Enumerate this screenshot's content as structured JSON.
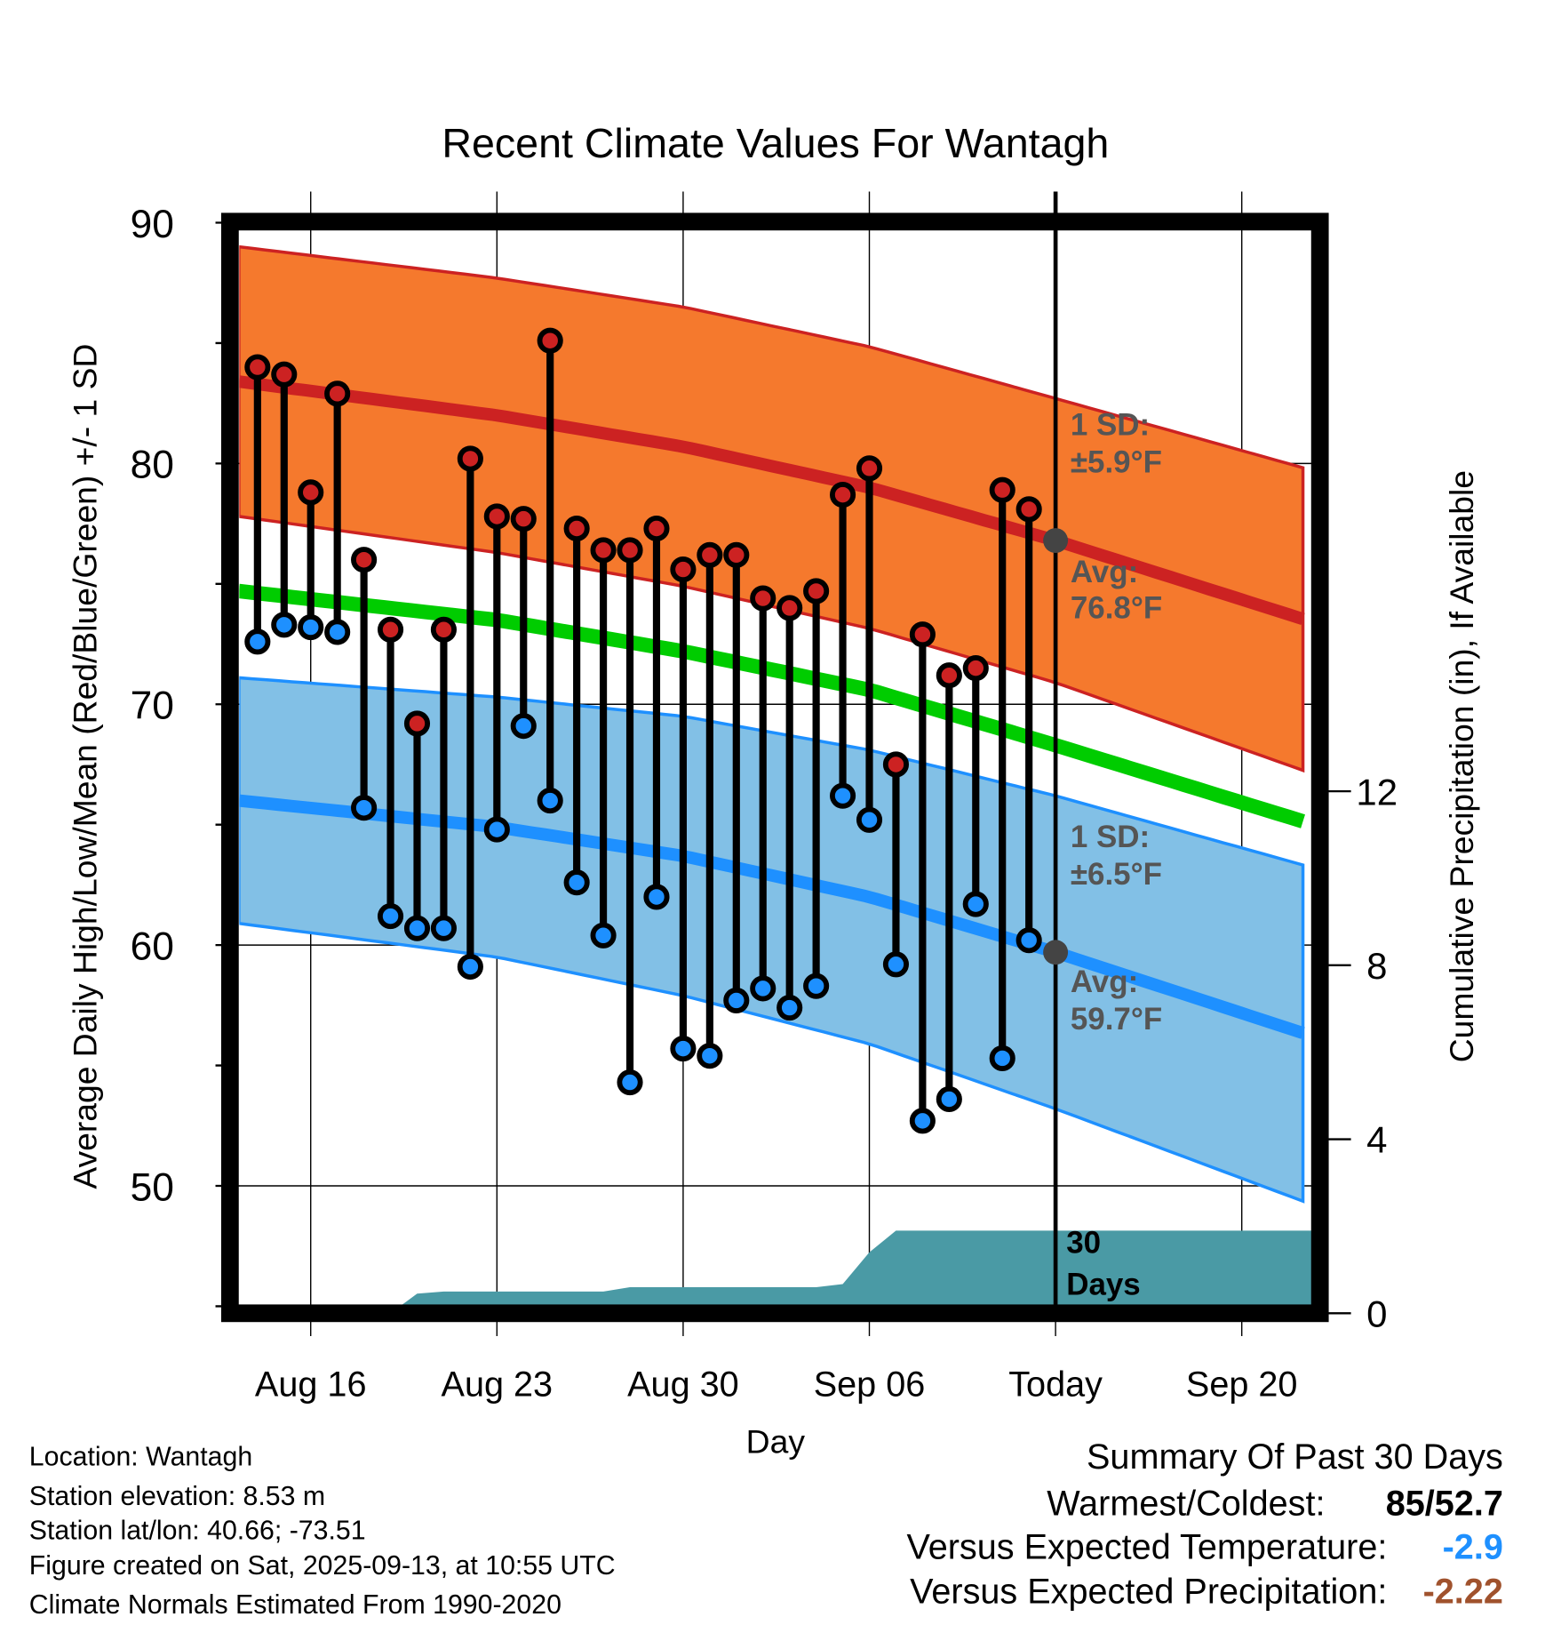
{
  "chart_data": {
    "type": "line",
    "title": "Recent Climate Values For Wantagh",
    "xlabel": "Day",
    "ylabel": "Average Daily High/Low/Mean (Red/Blue/Green) +/- 1 SD",
    "y2label": "Cumulative Precipitation (in), If Available",
    "ylim": [
      45.5,
      90
    ],
    "y2lim": [
      0,
      14
    ],
    "yticks": [
      "90",
      "80",
      "70",
      "60",
      "50"
    ],
    "y2ticks": [
      "12",
      "8",
      "4",
      "0"
    ],
    "xticks": [
      "Aug 16",
      "Aug 23",
      "Aug 30",
      "Sep 06",
      "Today",
      "Sep 20"
    ],
    "dates": [
      "Aug 14",
      "Aug 15",
      "Aug 16",
      "Aug 17",
      "Aug 18",
      "Aug 19",
      "Aug 20",
      "Aug 21",
      "Aug 22",
      "Aug 23",
      "Aug 24",
      "Aug 25",
      "Aug 26",
      "Aug 27",
      "Aug 28",
      "Aug 29",
      "Aug 30",
      "Aug 31",
      "Sep 01",
      "Sep 02",
      "Sep 03",
      "Sep 04",
      "Sep 05",
      "Sep 06",
      "Sep 07",
      "Sep 08",
      "Sep 09",
      "Sep 10",
      "Sep 11",
      "Sep 12"
    ],
    "series": [
      {
        "name": "Daily High",
        "color": "#cc2222",
        "values": [
          84.0,
          83.7,
          78.8,
          82.9,
          76.0,
          73.1,
          69.2,
          73.1,
          80.2,
          77.8,
          77.7,
          85.1,
          77.3,
          76.4,
          76.4,
          77.3,
          75.6,
          76.2,
          76.2,
          74.4,
          74.0,
          74.7,
          78.7,
          79.8,
          67.5,
          72.9,
          71.2,
          71.5,
          78.9,
          78.1
        ]
      },
      {
        "name": "Daily Low",
        "color": "#1e90ff",
        "values": [
          72.6,
          73.3,
          73.2,
          73.0,
          65.7,
          61.2,
          60.7,
          60.7,
          59.1,
          64.8,
          69.1,
          66.0,
          62.6,
          60.4,
          54.3,
          62.0,
          55.7,
          55.4,
          57.7,
          58.2,
          57.4,
          58.3,
          66.2,
          65.2,
          59.2,
          52.7,
          53.6,
          61.7,
          55.3,
          60.2
        ]
      },
      {
        "name": "Cumulative Precipitation",
        "color": "#4a9aa5",
        "values": [
          0,
          0,
          0,
          0,
          0,
          0,
          0.45,
          0.5,
          0.5,
          0.5,
          0.5,
          0.5,
          0.5,
          0.5,
          0.6,
          0.6,
          0.6,
          0.6,
          0.6,
          0.6,
          0.6,
          0.6,
          0.67,
          1.4,
          1.9,
          1.9,
          1.9,
          1.9,
          1.9,
          1.9
        ]
      }
    ],
    "normals": {
      "days_from_aug14": [
        -0.7,
        9,
        16,
        23,
        30,
        39.7
      ],
      "high_avg": [
        83.4,
        82.0,
        80.7,
        79.0,
        76.8,
        73.4
      ],
      "high_sd": [
        5.6,
        5.7,
        5.8,
        5.85,
        5.9,
        6.3
      ],
      "low_avg": [
        66.0,
        64.9,
        63.7,
        62.0,
        59.7,
        56.2
      ],
      "low_sd": [
        5.1,
        5.4,
        5.8,
        6.1,
        6.5,
        7.0
      ],
      "mean_avg": [
        74.7,
        73.5,
        72.2,
        70.6,
        68.3,
        65.0
      ]
    },
    "annotations": {
      "high_sd_1": "1 SD:",
      "high_sd_2": "±5.9°F",
      "high_avg_1": "Avg:",
      "high_avg_2": "76.8°F",
      "low_sd_1": "1 SD:",
      "low_sd_2": "±6.5°F",
      "low_avg_1": "Avg:",
      "low_avg_2": "59.7°F",
      "precip_1": "30",
      "precip_2": "Days"
    },
    "colors": {
      "high_band": "#f5792d",
      "high_line": "#cc2222",
      "low_band": "#82c0e6",
      "low_line": "#1e90ff",
      "mean_line": "#00cc00",
      "precip": "#4a9aa5"
    }
  },
  "info": {
    "location": "Location: Wantagh",
    "elevation": "Station elevation: 8.53 m",
    "latlon": "Station lat/lon: 40.66; -73.51",
    "created": "Figure created on Sat, 2025-09-13, at 10:55 UTC",
    "normals": "Climate Normals Estimated From 1990-2020"
  },
  "summary": {
    "title": "Summary Of Past 30 Days",
    "warm_cold_label": "Warmest/Coldest:",
    "warm_cold_value": "85/52.7",
    "temp_label": "Versus Expected Temperature:",
    "temp_value": "-2.9",
    "precip_label": "Versus Expected Precipitation:",
    "precip_value": "-2.22"
  }
}
